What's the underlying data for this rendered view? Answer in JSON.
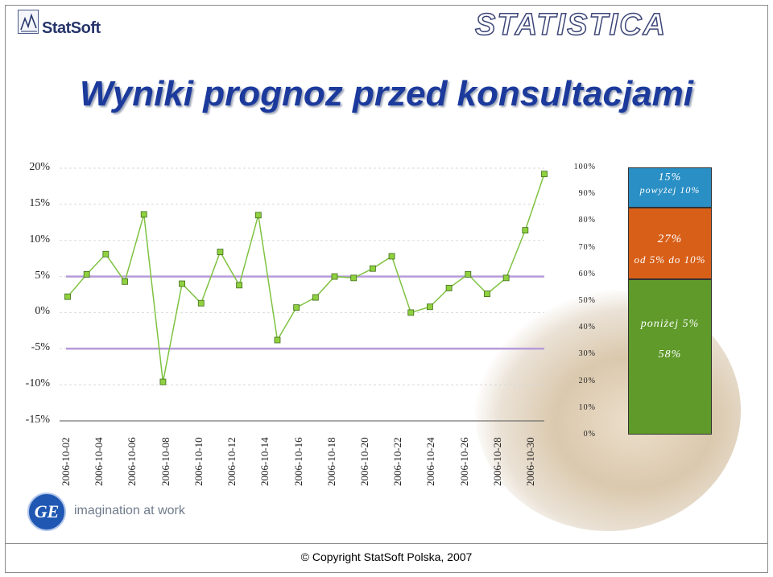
{
  "header": {
    "brand_left": "StatSoft",
    "brand_right": "STATISTICA"
  },
  "title": "Wyniki prognoz przed konsultacjami",
  "footer": {
    "tagline": "imagination at work",
    "ge_logo_text": "GE",
    "copyright": "© Copyright StatSoft Polska, 2007"
  },
  "chart_data": [
    {
      "type": "line",
      "title": "",
      "xlabel": "",
      "ylabel": "",
      "ylim": [
        -15,
        20
      ],
      "y_ticks": [
        "20%",
        "15%",
        "10%",
        "5%",
        "0%",
        "-5%",
        "-10%",
        "-15%"
      ],
      "x_tick_labels": [
        "2006-10-02",
        "2006-10-04",
        "2006-10-06",
        "2006-10-08",
        "2006-10-10",
        "2006-10-12",
        "2006-10-14",
        "2006-10-16",
        "2006-10-18",
        "2006-10-20",
        "2006-10-22",
        "2006-10-24",
        "2006-10-26",
        "2006-10-28",
        "2006-10-30"
      ],
      "series": [
        {
          "values": [
            2.2,
            5.3,
            8.1,
            4.3,
            13.6,
            -9.6,
            4.0,
            1.3,
            8.4,
            3.8,
            13.5,
            -3.8,
            0.7,
            2.1,
            5.0,
            4.8,
            6.1,
            7.8,
            0.0,
            0.8,
            3.4,
            5.3,
            2.6,
            4.8,
            11.4,
            19.2
          ],
          "color": "#7fc241"
        }
      ],
      "reference_lines": [
        {
          "y": 5,
          "color": "#b79bd9"
        },
        {
          "y": -5,
          "color": "#b79bd9"
        }
      ],
      "grid": true,
      "marker": "square",
      "marker_color": "#8fd13f"
    },
    {
      "type": "bar",
      "stacked": true,
      "title": "",
      "ylim": [
        0,
        100
      ],
      "y_ticks": [
        "100%",
        "90%",
        "80%",
        "70%",
        "60%",
        "50%",
        "40%",
        "30%",
        "20%",
        "10%",
        "0%"
      ],
      "segments": [
        {
          "label_value": "58%",
          "label_text": "poniżej 5%",
          "value": 58,
          "color": "#5f9a2a"
        },
        {
          "label_value": "27%",
          "label_text": "od 5% do 10%",
          "value": 27,
          "color": "#d85f18"
        },
        {
          "label_value": "15%",
          "label_text": "powyżej 10%",
          "value": 15,
          "color": "#2a8fc4"
        }
      ]
    }
  ]
}
